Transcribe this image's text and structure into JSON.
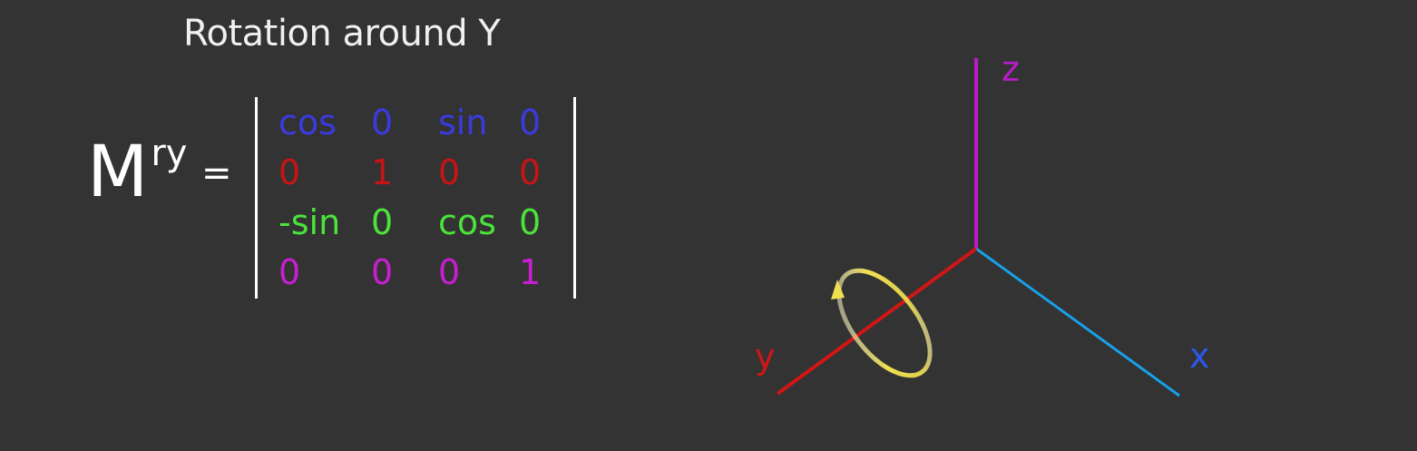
{
  "title": "Rotation around Y",
  "equation": {
    "symbol": "M",
    "superscript": "ry",
    "equals": "="
  },
  "matrix": {
    "rows": [
      {
        "color": "#3a3ae0",
        "cells": [
          "cos",
          "0",
          "sin",
          "0"
        ]
      },
      {
        "color": "#c81414",
        "cells": [
          "0",
          "1",
          "0",
          "0"
        ]
      },
      {
        "color": "#4ae43a",
        "cells": [
          "-sin",
          "0",
          "cos",
          "0"
        ]
      },
      {
        "color": "#c81ed2",
        "cells": [
          "0",
          "0",
          "0",
          "1"
        ]
      }
    ]
  },
  "axes": {
    "z": {
      "label": "z",
      "color": "#b81cc8"
    },
    "y": {
      "label": "y",
      "color": "#d01616"
    },
    "x": {
      "label": "x",
      "color": "#18a0e8",
      "label_color": "#2c58e8"
    },
    "rotation_indicator_color": "#f0e050"
  }
}
